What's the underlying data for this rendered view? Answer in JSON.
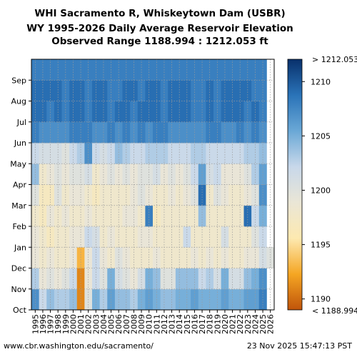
{
  "title": {
    "line1": "WHI Sacramento R, Whiskeytown Dam (USBR)",
    "line2": "WY 1995-2026 Daily Average Reservoir Elevation",
    "line3": "Observed Range 1188.994 : 1212.053 ft"
  },
  "footer": {
    "url": "www.cbr.washington.edu/sacramento/",
    "timestamp": "23 Nov 2025 15:47:13 PST"
  },
  "chart_data": {
    "type": "heatmap",
    "title": "WHI Sacramento R, Whiskeytown Dam (USBR) WY 1995-2026 Daily Average Reservoir Elevation",
    "subtitle": "Observed Range 1188.994 : 1212.053 ft",
    "x": [
      "1995",
      "1996",
      "1997",
      "1998",
      "1999",
      "2000",
      "2001",
      "2002",
      "2003",
      "2004",
      "2005",
      "2006",
      "2007",
      "2008",
      "2009",
      "2010",
      "2011",
      "2012",
      "2013",
      "2014",
      "2015",
      "2016",
      "2017",
      "2018",
      "2019",
      "2020",
      "2021",
      "2022",
      "2023",
      "2024",
      "2025",
      "2026"
    ],
    "y": [
      "Oct",
      "Nov",
      "Dec",
      "Jan",
      "Feb",
      "Mar",
      "Apr",
      "May",
      "Jun",
      "Jul",
      "Aug",
      "Sep"
    ],
    "values": [
      [
        1207,
        1202,
        1204,
        1203,
        1203,
        1204,
        1191,
        1200,
        1205,
        1203,
        1206,
        1204,
        1204,
        1203,
        1205,
        1206,
        1205,
        1204,
        1204,
        1205,
        1205,
        1206,
        1205,
        1205,
        1205,
        1206,
        1205,
        1205,
        1206,
        1206,
        1208,
        null
      ],
      [
        1203,
        1199,
        1200,
        1199,
        1200,
        1202,
        1191,
        1199,
        1202,
        1200,
        1205,
        1201,
        1200,
        1199,
        1201,
        1205,
        1204,
        1200,
        1200,
        1204,
        1204,
        1204,
        1202,
        1203,
        1201,
        1205,
        1201,
        1201,
        1204,
        1205,
        1207,
        null
      ],
      [
        1199,
        1198,
        1199,
        1198,
        1198,
        1199,
        1193,
        1199,
        1202,
        1199,
        1198,
        1200,
        1199,
        1198,
        1198,
        1198,
        1199,
        1198,
        1198,
        1198,
        1198,
        1199,
        1198,
        1199,
        1198,
        1199,
        1198,
        1198,
        1199,
        1199,
        1201,
        1200
      ],
      [
        1199,
        1198,
        1197,
        1198,
        1198,
        1199,
        1199,
        1202,
        1201,
        1198,
        1199,
        1198,
        1198,
        1198,
        1199,
        1199,
        1198,
        1198,
        1198,
        1198,
        1202,
        1198,
        1198,
        1198,
        1198,
        1201,
        1198,
        1198,
        1198,
        1200,
        1202,
        null
      ],
      [
        1198,
        1197,
        1199,
        1198,
        1199,
        1198,
        1198,
        1199,
        1198,
        1198,
        1198,
        1198,
        1199,
        1199,
        1198,
        1208,
        1197,
        1198,
        1198,
        1198,
        1198,
        1198,
        1204,
        1198,
        1198,
        1198,
        1198,
        1198,
        1209,
        1202,
        1205,
        null
      ],
      [
        1200,
        1197,
        1197,
        1200,
        1198,
        1199,
        1199,
        1198,
        1197,
        1198,
        1198,
        1198,
        1198,
        1199,
        1200,
        1199,
        1198,
        1198,
        1199,
        1198,
        1199,
        1200,
        1209,
        1198,
        1200,
        1199,
        1198,
        1198,
        1199,
        1200,
        1207,
        null
      ],
      [
        1204,
        1198,
        1199,
        1200,
        1199,
        1200,
        1200,
        1201,
        1198,
        1199,
        1200,
        1199,
        1200,
        1199,
        1200,
        1200,
        1201,
        1199,
        1200,
        1199,
        1200,
        1202,
        1206,
        1201,
        1202,
        1199,
        1199,
        1199,
        1200,
        1203,
        1206,
        null
      ],
      [
        1202,
        1201,
        1201,
        1201,
        1200,
        1202,
        1203,
        1207,
        1202,
        1201,
        1202,
        1204,
        1203,
        1202,
        1202,
        1203,
        1203,
        1203,
        1202,
        1202,
        1202,
        1203,
        1203,
        1202,
        1202,
        1202,
        1202,
        1202,
        1203,
        1203,
        1204,
        null
      ],
      [
        1208,
        1207,
        1207,
        1207,
        1207,
        1208,
        1208,
        1208,
        1207,
        1207,
        1208,
        1207,
        1208,
        1207,
        1208,
        1207,
        1208,
        1208,
        1207,
        1207,
        1207,
        1207,
        1207,
        1208,
        1208,
        1207,
        1207,
        1208,
        1207,
        1208,
        1207,
        null
      ],
      [
        1209,
        1209,
        1208,
        1209,
        1208,
        1209,
        1209,
        1208,
        1209,
        1209,
        1208,
        1209,
        1209,
        1208,
        1209,
        1209,
        1209,
        1208,
        1209,
        1209,
        1209,
        1208,
        1208,
        1209,
        1208,
        1209,
        1209,
        1209,
        1208,
        1209,
        1208,
        null
      ],
      [
        1209,
        1209,
        1209,
        1209,
        1208,
        1209,
        1209,
        1208,
        1209,
        1209,
        1208,
        1208,
        1209,
        1209,
        1208,
        1209,
        1209,
        1208,
        1209,
        1209,
        1209,
        1208,
        1208,
        1209,
        1208,
        1209,
        1209,
        1209,
        1209,
        1208,
        1208,
        null
      ],
      [
        1208,
        1208,
        1208,
        1208,
        1208,
        1208,
        1208,
        1208,
        1208,
        1208,
        1208,
        1208,
        1208,
        1208,
        1208,
        1208,
        1208,
        1208,
        1208,
        1208,
        1208,
        1208,
        1208,
        1208,
        1208,
        1208,
        1208,
        1208,
        1208,
        1208,
        1208,
        null
      ]
    ],
    "range": [
      1188.994,
      1212.053
    ],
    "colorbar": {
      "ticks": [
        "1190",
        "1195",
        "1200",
        "1205",
        "1210"
      ],
      "tick_values": [
        1190,
        1195,
        1200,
        1205,
        1210
      ],
      "top_label": "> 1212.053",
      "bottom_label": "< 1188.994",
      "colors": [
        "#c0540a",
        "#f5a623",
        "#fde9b0",
        "#eae6d6",
        "#c8d8ea",
        "#6aa8d6",
        "#2a73b8",
        "#08306b"
      ]
    },
    "grid": true
  }
}
